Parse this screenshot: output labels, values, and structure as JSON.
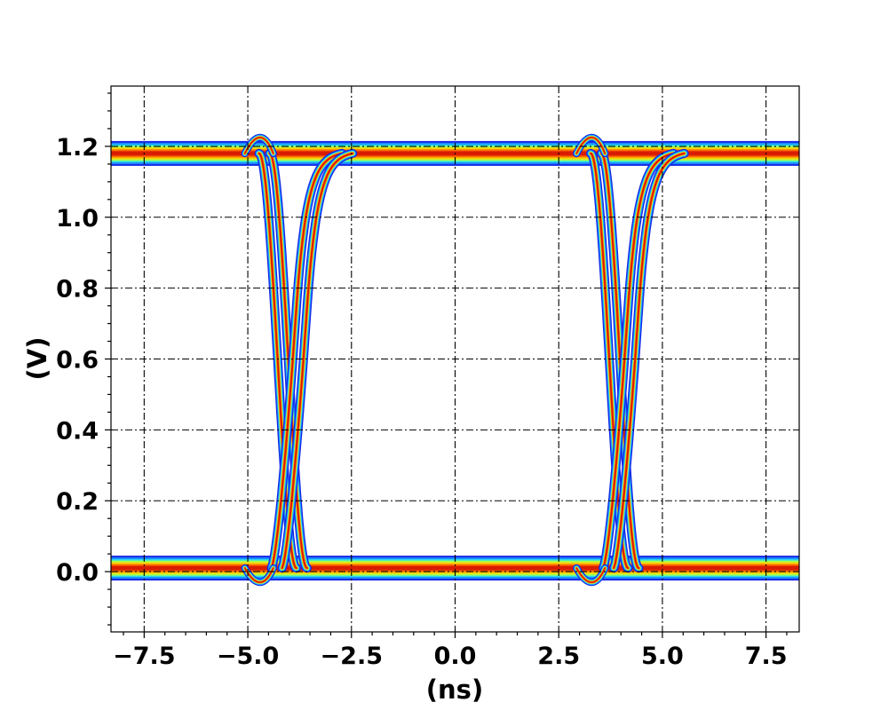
{
  "chart_data": {
    "type": "heatmap",
    "subtype": "eye-diagram",
    "title": "",
    "xlabel": "(ns)",
    "ylabel": "(V)",
    "xlim": [
      -8.3,
      8.3
    ],
    "ylim": [
      -0.17,
      1.37
    ],
    "xticks": [
      -7.5,
      -5.0,
      -2.5,
      0.0,
      2.5,
      5.0,
      7.5
    ],
    "xtick_labels": [
      "−7.5",
      "−5.0",
      "−2.5",
      "0.0",
      "2.5",
      "5.0",
      "7.5"
    ],
    "yticks": [
      0.0,
      0.2,
      0.4,
      0.6,
      0.8,
      1.0,
      1.2
    ],
    "ytick_labels": [
      "0.0",
      "0.2",
      "0.4",
      "0.6",
      "0.8",
      "1.0",
      "1.2"
    ],
    "grid": true,
    "grid_style": "dash-dot",
    "colormap": "jet",
    "levels": {
      "high_v": 1.18,
      "low_v": 0.01
    },
    "crossings_ns": [
      -4.0,
      4.0
    ],
    "crossing_v": 0.45,
    "falling_edges": [
      {
        "start_ns": -4.6,
        "end_ns": -3.7
      },
      {
        "start_ns": 3.4,
        "end_ns": 4.3
      }
    ],
    "rising_edges": [
      {
        "start_ns": -4.3,
        "end_ns": -2.6
      },
      {
        "start_ns": 3.7,
        "end_ns": 5.4
      }
    ],
    "overshoot_v": 0.06
  }
}
